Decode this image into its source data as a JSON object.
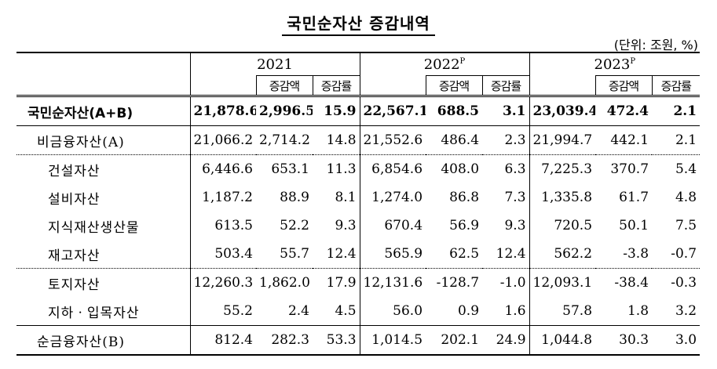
{
  "title": "국민순자산 증감내역",
  "unit": "(단위: 조원, %)",
  "header": {
    "years": [
      {
        "year": "2021",
        "sup": ""
      },
      {
        "year": "2022",
        "sup": "P"
      },
      {
        "year": "2023",
        "sup": "P"
      }
    ],
    "change_amount": "증감액",
    "change_rate": "증감률"
  },
  "rows": [
    {
      "label": "국민순자산(A+B)",
      "values": [
        "21,878.6",
        "2,996.5",
        "15.9",
        "22,567.1",
        "688.5",
        "3.1",
        "23,039.4",
        "472.4",
        "2.1"
      ]
    },
    {
      "label": "비금융자산(A)",
      "values": [
        "21,066.2",
        "2,714.2",
        "14.8",
        "21,552.6",
        "486.4",
        "2.3",
        "21,994.7",
        "442.1",
        "2.1"
      ]
    },
    {
      "label": "건설자산",
      "values": [
        "6,446.6",
        "653.1",
        "11.3",
        "6,854.6",
        "408.0",
        "6.3",
        "7,225.3",
        "370.7",
        "5.4"
      ]
    },
    {
      "label": "설비자산",
      "values": [
        "1,187.2",
        "88.9",
        "8.1",
        "1,274.0",
        "86.8",
        "7.3",
        "1,335.8",
        "61.7",
        "4.8"
      ]
    },
    {
      "label": "지식재산생산물",
      "values": [
        "613.5",
        "52.2",
        "9.3",
        "670.4",
        "56.9",
        "9.3",
        "720.5",
        "50.1",
        "7.5"
      ]
    },
    {
      "label": "재고자산",
      "values": [
        "503.4",
        "55.7",
        "12.4",
        "565.9",
        "62.5",
        "12.4",
        "562.2",
        "-3.8",
        "-0.7"
      ]
    },
    {
      "label": "토지자산",
      "values": [
        "12,260.3",
        "1,862.0",
        "17.9",
        "12,131.6",
        "-128.7",
        "-1.0",
        "12,093.1",
        "-38.4",
        "-0.3"
      ]
    },
    {
      "label": "지하ㆍ입목자산",
      "values": [
        "55.2",
        "2.4",
        "4.5",
        "56.0",
        "0.9",
        "1.6",
        "57.8",
        "1.8",
        "3.2"
      ]
    },
    {
      "label": "순금융자산(B)",
      "values": [
        "812.4",
        "282.3",
        "53.3",
        "1,014.5",
        "202.1",
        "24.9",
        "1,044.8",
        "30.3",
        "3.0"
      ]
    }
  ]
}
